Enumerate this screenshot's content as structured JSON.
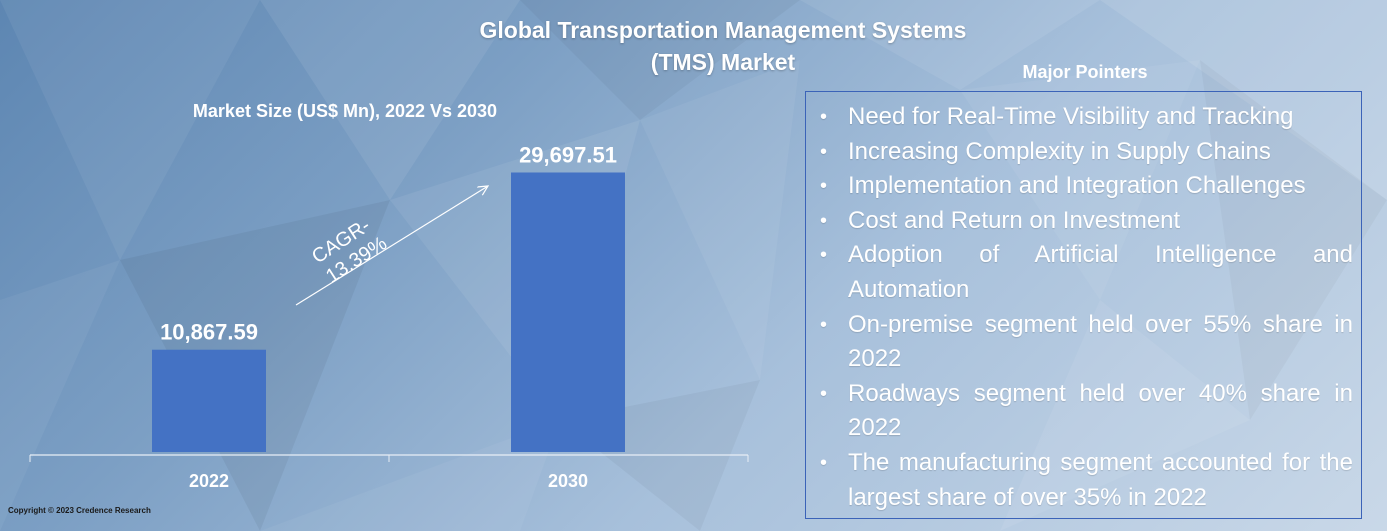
{
  "title_line1": "Global Transportation Management Systems",
  "title_line2": "(TMS) Market",
  "copyright": "Copyright © 2023 Credence Research",
  "pointers": {
    "heading": "Major Pointers",
    "items": [
      "Need for Real-Time Visibility and Tracking",
      "Increasing Complexity in Supply Chains",
      "Implementation and Integration Challenges",
      "Cost and Return on Investment",
      "Adoption of Artificial Intelligence and Automation",
      "On-premise segment held over 55% share in 2022",
      "Roadways segment held over 40% share in 2022",
      "The manufacturing segment accounted for the largest share of over 35% in 2022"
    ],
    "bullet": "•"
  },
  "colors": {
    "bar": "#4472c4",
    "box_border": "#3b63b8",
    "text": "#ffffff"
  },
  "chart_data": {
    "type": "bar",
    "title": "Market Size (US$ Mn), 2022 Vs 2030",
    "categories": [
      "2022",
      "2030"
    ],
    "values": [
      10867.59,
      29697.51
    ],
    "value_labels": [
      "10,867.59",
      "29,697.51"
    ],
    "ylim": [
      0,
      34000
    ],
    "annotation": {
      "line1": "CAGR-",
      "line2": "13.39%"
    },
    "grid": false,
    "legend": "none"
  }
}
